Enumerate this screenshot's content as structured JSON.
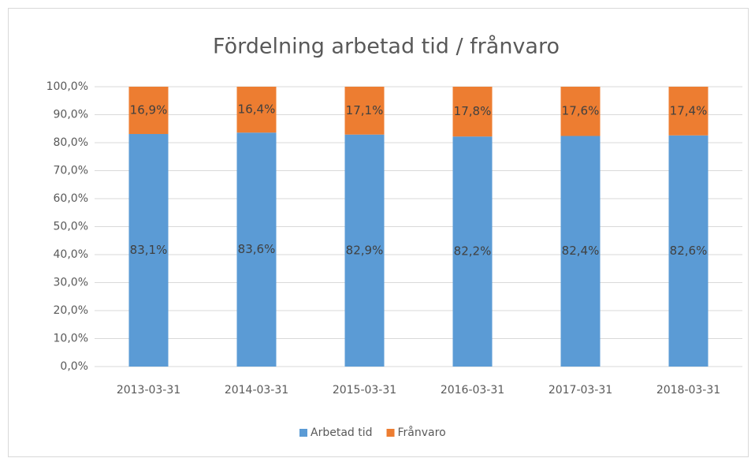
{
  "chart_data": {
    "type": "stacked_bar",
    "title": "Fördelning arbetad tid / frånvaro",
    "categories": [
      "2013-03-31",
      "2014-03-31",
      "2015-03-31",
      "2016-03-31",
      "2017-03-31",
      "2018-03-31"
    ],
    "series": [
      {
        "name": "Arbetad tid",
        "color": "#5b9bd5",
        "values": [
          83.1,
          83.6,
          82.9,
          82.2,
          82.4,
          82.6
        ],
        "value_labels": [
          "83,1%",
          "83,6%",
          "82,9%",
          "82,2%",
          "82,4%",
          "82,6%"
        ]
      },
      {
        "name": "Frånvaro",
        "color": "#ed7d31",
        "values": [
          16.9,
          16.4,
          17.1,
          17.8,
          17.6,
          17.4
        ],
        "value_labels": [
          "16,9%",
          "16,4%",
          "17,1%",
          "17,8%",
          "17,6%",
          "17,4%"
        ]
      }
    ],
    "ylim": [
      0,
      100
    ],
    "yticks": [
      {
        "value": 0,
        "label": "0,0%"
      },
      {
        "value": 10,
        "label": "10,0%"
      },
      {
        "value": 20,
        "label": "20,0%"
      },
      {
        "value": 30,
        "label": "30,0%"
      },
      {
        "value": 40,
        "label": "40,0%"
      },
      {
        "value": 50,
        "label": "50,0%"
      },
      {
        "value": 60,
        "label": "60,0%"
      },
      {
        "value": 70,
        "label": "70,0%"
      },
      {
        "value": 80,
        "label": "80,0%"
      },
      {
        "value": 90,
        "label": "90,0%"
      },
      {
        "value": 100,
        "label": "100,0%"
      }
    ],
    "grid": true,
    "legend": "bottom"
  }
}
